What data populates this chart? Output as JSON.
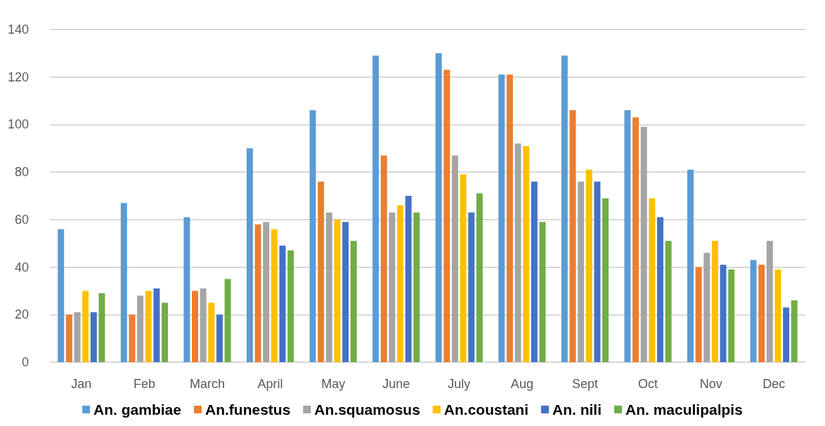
{
  "chart_data": {
    "type": "bar",
    "categories": [
      "Jan",
      "Feb",
      "March",
      "April",
      "May",
      "June",
      "July",
      "Aug",
      "Sept",
      "Oct",
      "Nov",
      "Dec"
    ],
    "series": [
      {
        "name": "An. gambiae",
        "color": "#5b9bd5",
        "values": [
          56,
          67,
          61,
          90,
          106,
          129,
          130,
          121,
          129,
          106,
          81,
          43
        ]
      },
      {
        "name": "An.funestus",
        "color": "#ed7d31",
        "values": [
          20,
          20,
          30,
          58,
          76,
          87,
          123,
          121,
          106,
          103,
          40,
          41
        ]
      },
      {
        "name": "An.squamosus",
        "color": "#a5a5a5",
        "values": [
          21,
          28,
          31,
          59,
          63,
          63,
          87,
          92,
          76,
          99,
          46,
          51
        ]
      },
      {
        "name": "An.coustani",
        "color": "#ffc000",
        "values": [
          30,
          30,
          25,
          56,
          60,
          66,
          79,
          91,
          81,
          69,
          51,
          39
        ]
      },
      {
        "name": "An. nili",
        "color": "#4472c4",
        "values": [
          21,
          31,
          20,
          49,
          59,
          70,
          63,
          76,
          76,
          61,
          41,
          23
        ]
      },
      {
        "name": "An. maculipalpis",
        "color": "#70ad47",
        "values": [
          29,
          25,
          35,
          47,
          51,
          63,
          71,
          59,
          69,
          51,
          39,
          26
        ]
      }
    ],
    "ylim": [
      0,
      140
    ],
    "yticks": [
      0,
      20,
      40,
      60,
      80,
      100,
      120,
      140
    ],
    "grid": "y",
    "legend": "bottom"
  }
}
